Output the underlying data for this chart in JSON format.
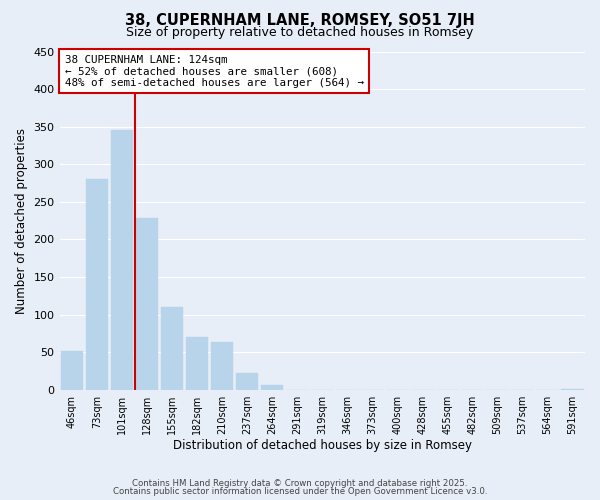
{
  "title": "38, CUPERNHAM LANE, ROMSEY, SO51 7JH",
  "subtitle": "Size of property relative to detached houses in Romsey",
  "xlabel": "Distribution of detached houses by size in Romsey",
  "ylabel": "Number of detached properties",
  "bar_color": "#b8d4ea",
  "bar_edge_color": "#b8d4ea",
  "background_color": "#e8eef8",
  "plot_bg_color": "#e8eef8",
  "grid_color": "#ffffff",
  "bins": [
    "46sqm",
    "73sqm",
    "101sqm",
    "128sqm",
    "155sqm",
    "182sqm",
    "210sqm",
    "237sqm",
    "264sqm",
    "291sqm",
    "319sqm",
    "346sqm",
    "373sqm",
    "400sqm",
    "428sqm",
    "455sqm",
    "482sqm",
    "509sqm",
    "537sqm",
    "564sqm",
    "591sqm"
  ],
  "values": [
    52,
    280,
    345,
    229,
    110,
    70,
    64,
    22,
    6,
    0,
    0,
    0,
    0,
    0,
    0,
    0,
    0,
    0,
    0,
    0,
    1
  ],
  "vline_color": "#cc0000",
  "vline_x_index": 2.5,
  "ylim": [
    0,
    450
  ],
  "yticks": [
    0,
    50,
    100,
    150,
    200,
    250,
    300,
    350,
    400,
    450
  ],
  "annotation_title": "38 CUPERNHAM LANE: 124sqm",
  "annotation_line1": "← 52% of detached houses are smaller (608)",
  "annotation_line2": "48% of semi-detached houses are larger (564) →",
  "footnote1": "Contains HM Land Registry data © Crown copyright and database right 2025.",
  "footnote2": "Contains public sector information licensed under the Open Government Licence v3.0."
}
